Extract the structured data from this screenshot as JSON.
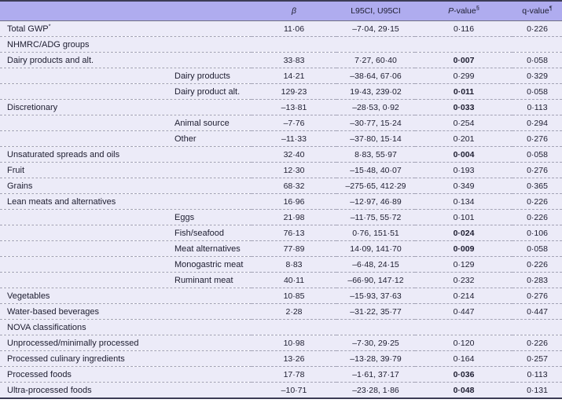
{
  "table": {
    "columns": {
      "beta": "β",
      "ci": "L95CI, U95CI",
      "p_main": "P",
      "p_rest": "-value",
      "p_sup": "§",
      "q_main": "q-value",
      "q_sup": "¶"
    },
    "rows": [
      {
        "type": "data",
        "label": "Total GWP",
        "label_sup": "*",
        "indent": 0,
        "beta": "11·06",
        "ci": "–7·04, 29·15",
        "p": "0·116",
        "p_bold": false,
        "q": "0·226"
      },
      {
        "type": "section",
        "label": "NHMRC/ADG groups"
      },
      {
        "type": "data",
        "label": "Dairy products and alt.",
        "indent": 0,
        "beta": "33·83",
        "ci": "7·27, 60·40",
        "p": "0·007",
        "p_bold": true,
        "q": "0·058"
      },
      {
        "type": "data",
        "label": "Dairy products",
        "indent": 1,
        "beta": "14·21",
        "ci": "–38·64, 67·06",
        "p": "0·299",
        "p_bold": false,
        "q": "0·329"
      },
      {
        "type": "data",
        "label": "Dairy product alt.",
        "indent": 1,
        "beta": "129·23",
        "ci": "19·43, 239·02",
        "p": "0·011",
        "p_bold": true,
        "q": "0·058"
      },
      {
        "type": "data",
        "label": "Discretionary",
        "indent": 0,
        "beta": "–13·81",
        "ci": "–28·53, 0·92",
        "p": "0·033",
        "p_bold": true,
        "q": "0·113"
      },
      {
        "type": "data",
        "label": "Animal source",
        "indent": 1,
        "beta": "–7·76",
        "ci": "–30·77, 15·24",
        "p": "0·254",
        "p_bold": false,
        "q": "0·294"
      },
      {
        "type": "data",
        "label": "Other",
        "indent": 1,
        "beta": "–11·33",
        "ci": "–37·80, 15·14",
        "p": "0·201",
        "p_bold": false,
        "q": "0·276"
      },
      {
        "type": "data",
        "label": "Unsaturated spreads and oils",
        "indent": 0,
        "beta": "32·40",
        "ci": "8·83, 55·97",
        "p": "0·004",
        "p_bold": true,
        "q": "0·058"
      },
      {
        "type": "data",
        "label": "Fruit",
        "indent": 0,
        "beta": "12·30",
        "ci": "–15·48, 40·07",
        "p": "0·193",
        "p_bold": false,
        "q": "0·276"
      },
      {
        "type": "data",
        "label": "Grains",
        "indent": 0,
        "beta": "68·32",
        "ci": "–275·65, 412·29",
        "p": "0·349",
        "p_bold": false,
        "q": "0·365"
      },
      {
        "type": "data",
        "label": "Lean meats and alternatives",
        "indent": 0,
        "beta": "16·96",
        "ci": "–12·97, 46·89",
        "p": "0·134",
        "p_bold": false,
        "q": "0·226"
      },
      {
        "type": "data",
        "label": "Eggs",
        "indent": 1,
        "beta": "21·98",
        "ci": "–11·75, 55·72",
        "p": "0·101",
        "p_bold": false,
        "q": "0·226"
      },
      {
        "type": "data",
        "label": "Fish/seafood",
        "indent": 1,
        "beta": "76·13",
        "ci": "0·76, 151·51",
        "p": "0·024",
        "p_bold": true,
        "q": "0·106"
      },
      {
        "type": "data",
        "label": "Meat alternatives",
        "indent": 1,
        "beta": "77·89",
        "ci": "14·09, 141·70",
        "p": "0·009",
        "p_bold": true,
        "q": "0·058"
      },
      {
        "type": "data",
        "label": "Monogastric meat",
        "indent": 1,
        "beta": "8·83",
        "ci": "–6·48, 24·15",
        "p": "0·129",
        "p_bold": false,
        "q": "0·226"
      },
      {
        "type": "data",
        "label": "Ruminant meat",
        "indent": 1,
        "beta": "40·11",
        "ci": "–66·90, 147·12",
        "p": "0·232",
        "p_bold": false,
        "q": "0·283"
      },
      {
        "type": "data",
        "label": "Vegetables",
        "indent": 0,
        "beta": "10·85",
        "ci": "–15·93, 37·63",
        "p": "0·214",
        "p_bold": false,
        "q": "0·276"
      },
      {
        "type": "data",
        "label": "Water-based beverages",
        "indent": 0,
        "beta": "2·28",
        "ci": "–31·22, 35·77",
        "p": "0·447",
        "p_bold": false,
        "q": "0·447"
      },
      {
        "type": "section",
        "label": "NOVA classifications"
      },
      {
        "type": "data",
        "label": "Unprocessed/minimally processed",
        "indent": 0,
        "beta": "10·98",
        "ci": "–7·30, 29·25",
        "p": "0·120",
        "p_bold": false,
        "q": "0·226"
      },
      {
        "type": "data",
        "label": "Processed culinary ingredients",
        "indent": 0,
        "beta": "13·26",
        "ci": "–13·28, 39·79",
        "p": "0·164",
        "p_bold": false,
        "q": "0·257"
      },
      {
        "type": "data",
        "label": "Processed foods",
        "indent": 0,
        "beta": "17·78",
        "ci": "–1·61, 37·17",
        "p": "0·036",
        "p_bold": true,
        "q": "0·113"
      },
      {
        "type": "data",
        "label": "Ultra-processed foods",
        "indent": 0,
        "beta": "–10·71",
        "ci": "–23·28, 1·86",
        "p": "0·048",
        "p_bold": true,
        "q": "0·131"
      }
    ]
  },
  "colors": {
    "header_bg": "#afacef",
    "row_bg": "#ecebf8",
    "text": "#1d1d30"
  }
}
